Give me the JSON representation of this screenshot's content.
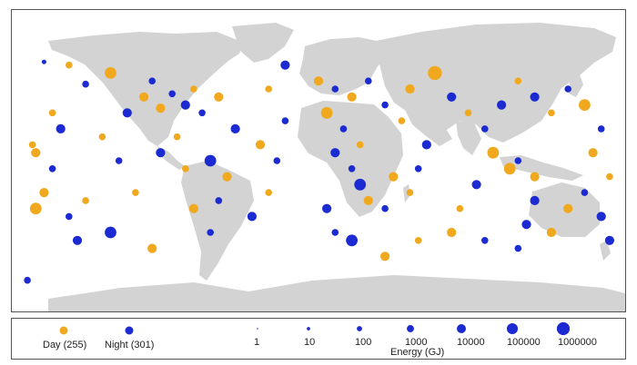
{
  "colors": {
    "day": "#f0a91e",
    "night": "#1c2bd1",
    "land": "#d3d3d3",
    "border": "#555555"
  },
  "legend": {
    "day_label": "Day (255)",
    "night_label": "Night (301)",
    "energy_title": "Energy (GJ)",
    "energy_levels": [
      "1",
      "10",
      "100",
      "1000",
      "10000",
      "100000",
      "1000000"
    ]
  },
  "map_data": {
    "type": "bubble-map",
    "series": [
      {
        "name": "Day",
        "count": 255,
        "color": "#f0a91e"
      },
      {
        "name": "Night",
        "count": 301,
        "color": "#1c2bd1"
      }
    ],
    "points": [
      {
        "lon": -165,
        "lat": 62,
        "type": "night",
        "energy": 10
      },
      {
        "lon": -150,
        "lat": 60,
        "type": "day",
        "energy": 100
      },
      {
        "lon": -140,
        "lat": 48,
        "type": "night",
        "energy": 100
      },
      {
        "lon": -160,
        "lat": 30,
        "type": "day",
        "energy": 100
      },
      {
        "lon": -155,
        "lat": 20,
        "type": "night",
        "energy": 1000
      },
      {
        "lon": -172,
        "lat": 10,
        "type": "day",
        "energy": 100
      },
      {
        "lon": -170,
        "lat": 5,
        "type": "day",
        "energy": 1000
      },
      {
        "lon": -160,
        "lat": -5,
        "type": "night",
        "energy": 100
      },
      {
        "lon": -165,
        "lat": -20,
        "type": "day",
        "energy": 1000
      },
      {
        "lon": -170,
        "lat": -30,
        "type": "day",
        "energy": 10000
      },
      {
        "lon": -150,
        "lat": -35,
        "type": "night",
        "energy": 100
      },
      {
        "lon": -140,
        "lat": -25,
        "type": "day",
        "energy": 100
      },
      {
        "lon": -145,
        "lat": -50,
        "type": "night",
        "energy": 1000
      },
      {
        "lon": -125,
        "lat": -45,
        "type": "night",
        "energy": 10000
      },
      {
        "lon": -110,
        "lat": -20,
        "type": "day",
        "energy": 100
      },
      {
        "lon": -120,
        "lat": 0,
        "type": "night",
        "energy": 100
      },
      {
        "lon": -130,
        "lat": 15,
        "type": "day",
        "energy": 100
      },
      {
        "lon": -115,
        "lat": 30,
        "type": "night",
        "energy": 1000
      },
      {
        "lon": -105,
        "lat": 40,
        "type": "day",
        "energy": 1000
      },
      {
        "lon": -100,
        "lat": 50,
        "type": "night",
        "energy": 100
      },
      {
        "lon": -125,
        "lat": 55,
        "type": "day",
        "energy": 10000
      },
      {
        "lon": -95,
        "lat": 33,
        "type": "day",
        "energy": 1000
      },
      {
        "lon": -88,
        "lat": 42,
        "type": "night",
        "energy": 100
      },
      {
        "lon": -80,
        "lat": 35,
        "type": "night",
        "energy": 1000
      },
      {
        "lon": -75,
        "lat": 45,
        "type": "day",
        "energy": 100
      },
      {
        "lon": -70,
        "lat": 30,
        "type": "night",
        "energy": 100
      },
      {
        "lon": -60,
        "lat": 40,
        "type": "day",
        "energy": 1000
      },
      {
        "lon": -50,
        "lat": 20,
        "type": "night",
        "energy": 1000
      },
      {
        "lon": -85,
        "lat": 15,
        "type": "day",
        "energy": 100
      },
      {
        "lon": -95,
        "lat": 5,
        "type": "night",
        "energy": 1000
      },
      {
        "lon": -80,
        "lat": -5,
        "type": "day",
        "energy": 100
      },
      {
        "lon": -65,
        "lat": 0,
        "type": "night",
        "energy": 10000
      },
      {
        "lon": -55,
        "lat": -10,
        "type": "day",
        "energy": 1000
      },
      {
        "lon": -60,
        "lat": -25,
        "type": "night",
        "energy": 100
      },
      {
        "lon": -75,
        "lat": -30,
        "type": "day",
        "energy": 1000
      },
      {
        "lon": -65,
        "lat": -45,
        "type": "night",
        "energy": 100
      },
      {
        "lon": -40,
        "lat": -35,
        "type": "night",
        "energy": 1000
      },
      {
        "lon": -30,
        "lat": -20,
        "type": "day",
        "energy": 100
      },
      {
        "lon": -25,
        "lat": 0,
        "type": "night",
        "energy": 100
      },
      {
        "lon": -35,
        "lat": 10,
        "type": "day",
        "energy": 1000
      },
      {
        "lon": -20,
        "lat": 25,
        "type": "night",
        "energy": 100
      },
      {
        "lon": -30,
        "lat": 45,
        "type": "day",
        "energy": 100
      },
      {
        "lon": -20,
        "lat": 60,
        "type": "night",
        "energy": 1000
      },
      {
        "lon": 0,
        "lat": 50,
        "type": "day",
        "energy": 1000
      },
      {
        "lon": 10,
        "lat": 45,
        "type": "night",
        "energy": 100
      },
      {
        "lon": 20,
        "lat": 40,
        "type": "day",
        "energy": 1000
      },
      {
        "lon": 30,
        "lat": 50,
        "type": "night",
        "energy": 100
      },
      {
        "lon": 5,
        "lat": 30,
        "type": "day",
        "energy": 10000
      },
      {
        "lon": 15,
        "lat": 20,
        "type": "night",
        "energy": 100
      },
      {
        "lon": 25,
        "lat": 10,
        "type": "day",
        "energy": 100
      },
      {
        "lon": 10,
        "lat": 5,
        "type": "night",
        "energy": 1000
      },
      {
        "lon": 20,
        "lat": -5,
        "type": "night",
        "energy": 100
      },
      {
        "lon": 25,
        "lat": -15,
        "type": "night",
        "energy": 10000
      },
      {
        "lon": 30,
        "lat": -25,
        "type": "day",
        "energy": 1000
      },
      {
        "lon": 40,
        "lat": -30,
        "type": "night",
        "energy": 100
      },
      {
        "lon": 5,
        "lat": -30,
        "type": "night",
        "energy": 1000
      },
      {
        "lon": 10,
        "lat": -45,
        "type": "night",
        "energy": 100
      },
      {
        "lon": 20,
        "lat": -50,
        "type": "night",
        "energy": 10000
      },
      {
        "lon": 45,
        "lat": -10,
        "type": "day",
        "energy": 1000
      },
      {
        "lon": 55,
        "lat": -20,
        "type": "day",
        "energy": 100
      },
      {
        "lon": 60,
        "lat": -5,
        "type": "night",
        "energy": 100
      },
      {
        "lon": 65,
        "lat": 10,
        "type": "night",
        "energy": 1000
      },
      {
        "lon": 50,
        "lat": 25,
        "type": "day",
        "energy": 100
      },
      {
        "lon": 40,
        "lat": 35,
        "type": "night",
        "energy": 100
      },
      {
        "lon": 55,
        "lat": 45,
        "type": "day",
        "energy": 1000
      },
      {
        "lon": 70,
        "lat": 55,
        "type": "day",
        "energy": 100000
      },
      {
        "lon": 80,
        "lat": 40,
        "type": "night",
        "energy": 1000
      },
      {
        "lon": 90,
        "lat": 30,
        "type": "day",
        "energy": 100
      },
      {
        "lon": 100,
        "lat": 20,
        "type": "night",
        "energy": 100
      },
      {
        "lon": 110,
        "lat": 35,
        "type": "night",
        "energy": 1000
      },
      {
        "lon": 120,
        "lat": 50,
        "type": "day",
        "energy": 100
      },
      {
        "lon": 130,
        "lat": 40,
        "type": "night",
        "energy": 1000
      },
      {
        "lon": 140,
        "lat": 30,
        "type": "day",
        "energy": 100
      },
      {
        "lon": 150,
        "lat": 45,
        "type": "night",
        "energy": 100
      },
      {
        "lon": 160,
        "lat": 35,
        "type": "day",
        "energy": 10000
      },
      {
        "lon": 105,
        "lat": 5,
        "type": "day",
        "energy": 10000
      },
      {
        "lon": 115,
        "lat": -5,
        "type": "day",
        "energy": 10000
      },
      {
        "lon": 120,
        "lat": 0,
        "type": "night",
        "energy": 100
      },
      {
        "lon": 130,
        "lat": -10,
        "type": "day",
        "energy": 1000
      },
      {
        "lon": 95,
        "lat": -15,
        "type": "night",
        "energy": 1000
      },
      {
        "lon": 85,
        "lat": -30,
        "type": "day",
        "energy": 100
      },
      {
        "lon": 80,
        "lat": -45,
        "type": "day",
        "energy": 1000
      },
      {
        "lon": 100,
        "lat": -50,
        "type": "night",
        "energy": 100
      },
      {
        "lon": 125,
        "lat": -40,
        "type": "night",
        "energy": 1000
      },
      {
        "lon": 140,
        "lat": -45,
        "type": "day",
        "energy": 1000
      },
      {
        "lon": 150,
        "lat": -30,
        "type": "day",
        "energy": 1000
      },
      {
        "lon": 160,
        "lat": -20,
        "type": "night",
        "energy": 100
      },
      {
        "lon": 170,
        "lat": -35,
        "type": "night",
        "energy": 1000
      },
      {
        "lon": 175,
        "lat": -10,
        "type": "day",
        "energy": 100
      },
      {
        "lon": 165,
        "lat": 5,
        "type": "day",
        "energy": 1000
      },
      {
        "lon": 170,
        "lat": 20,
        "type": "night",
        "energy": 100
      },
      {
        "lon": 175,
        "lat": -50,
        "type": "night",
        "energy": 1000
      },
      {
        "lon": 60,
        "lat": -50,
        "type": "day",
        "energy": 100
      },
      {
        "lon": -100,
        "lat": -55,
        "type": "day",
        "energy": 1000
      },
      {
        "lon": -175,
        "lat": -75,
        "type": "night",
        "energy": 100
      },
      {
        "lon": 40,
        "lat": -60,
        "type": "day",
        "energy": 1000
      },
      {
        "lon": 120,
        "lat": -55,
        "type": "night",
        "energy": 100
      },
      {
        "lon": 130,
        "lat": -25,
        "type": "night",
        "energy": 1000
      }
    ]
  }
}
